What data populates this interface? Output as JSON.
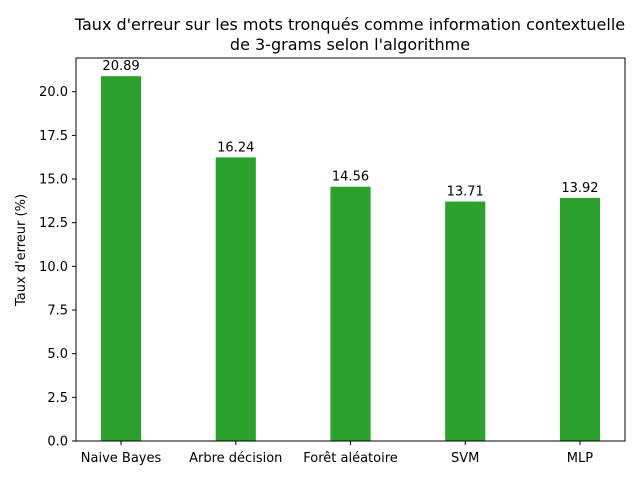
{
  "chart_data": {
    "type": "bar",
    "title_line1": "Taux d'erreur sur les mots tronqués comme information contextuelle",
    "title_line2": "de 3-grams selon l'algorithme",
    "xlabel": "",
    "ylabel": "Taux d'erreur (%)",
    "categories": [
      "Naive Bayes",
      "Arbre décision",
      "Forêt aléatoire",
      "SVM",
      "MLP"
    ],
    "values": [
      20.89,
      16.24,
      14.56,
      13.71,
      13.92
    ],
    "value_labels": [
      "20.89",
      "16.24",
      "14.56",
      "13.71",
      "13.92"
    ],
    "ylim": [
      0,
      21.93
    ],
    "yticks": [
      0.0,
      2.5,
      5.0,
      7.5,
      10.0,
      12.5,
      15.0,
      17.5,
      20.0
    ],
    "ytick_labels": [
      "0.0",
      "2.5",
      "5.0",
      "7.5",
      "10.0",
      "12.5",
      "15.0",
      "17.5",
      "20.0"
    ],
    "bar_color": "#2ca02c",
    "grid": false,
    "legend": "none"
  }
}
